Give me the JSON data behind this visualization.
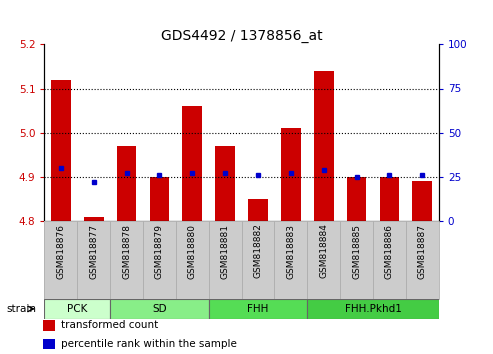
{
  "title": "GDS4492 / 1378856_at",
  "samples": [
    "GSM818876",
    "GSM818877",
    "GSM818878",
    "GSM818879",
    "GSM818880",
    "GSM818881",
    "GSM818882",
    "GSM818883",
    "GSM818884",
    "GSM818885",
    "GSM818886",
    "GSM818887"
  ],
  "transformed_count": [
    5.12,
    4.81,
    4.97,
    4.9,
    5.06,
    4.97,
    4.85,
    5.01,
    5.14,
    4.9,
    4.9,
    4.89
  ],
  "percentile_rank": [
    30,
    22,
    27,
    26,
    27,
    27,
    26,
    27,
    29,
    25,
    26,
    26
  ],
  "ylim": [
    4.8,
    5.2
  ],
  "y2lim": [
    0,
    100
  ],
  "yticks": [
    4.8,
    4.9,
    5.0,
    5.1,
    5.2
  ],
  "y2ticks": [
    0,
    25,
    50,
    75,
    100
  ],
  "dotted_lines": [
    4.9,
    5.0,
    5.1
  ],
  "bar_color": "#cc0000",
  "dot_color": "#0000cc",
  "bar_bottom": 4.8,
  "groups": [
    {
      "label": "PCK",
      "start": 0,
      "end": 1,
      "color": "#ccffcc"
    },
    {
      "label": "SD",
      "start": 2,
      "end": 4,
      "color": "#88ee88"
    },
    {
      "label": "FHH",
      "start": 5,
      "end": 7,
      "color": "#55dd55"
    },
    {
      "label": "FHH.Pkhd1",
      "start": 8,
      "end": 11,
      "color": "#44cc44"
    }
  ],
  "tick_label_color_left": "#cc0000",
  "tick_label_color_right": "#0000cc",
  "legend_items": [
    "transformed count",
    "percentile rank within the sample"
  ],
  "legend_colors": [
    "#cc0000",
    "#0000cc"
  ],
  "bg_color_plot": "#ffffff",
  "bg_color_xtick": "#cccccc"
}
